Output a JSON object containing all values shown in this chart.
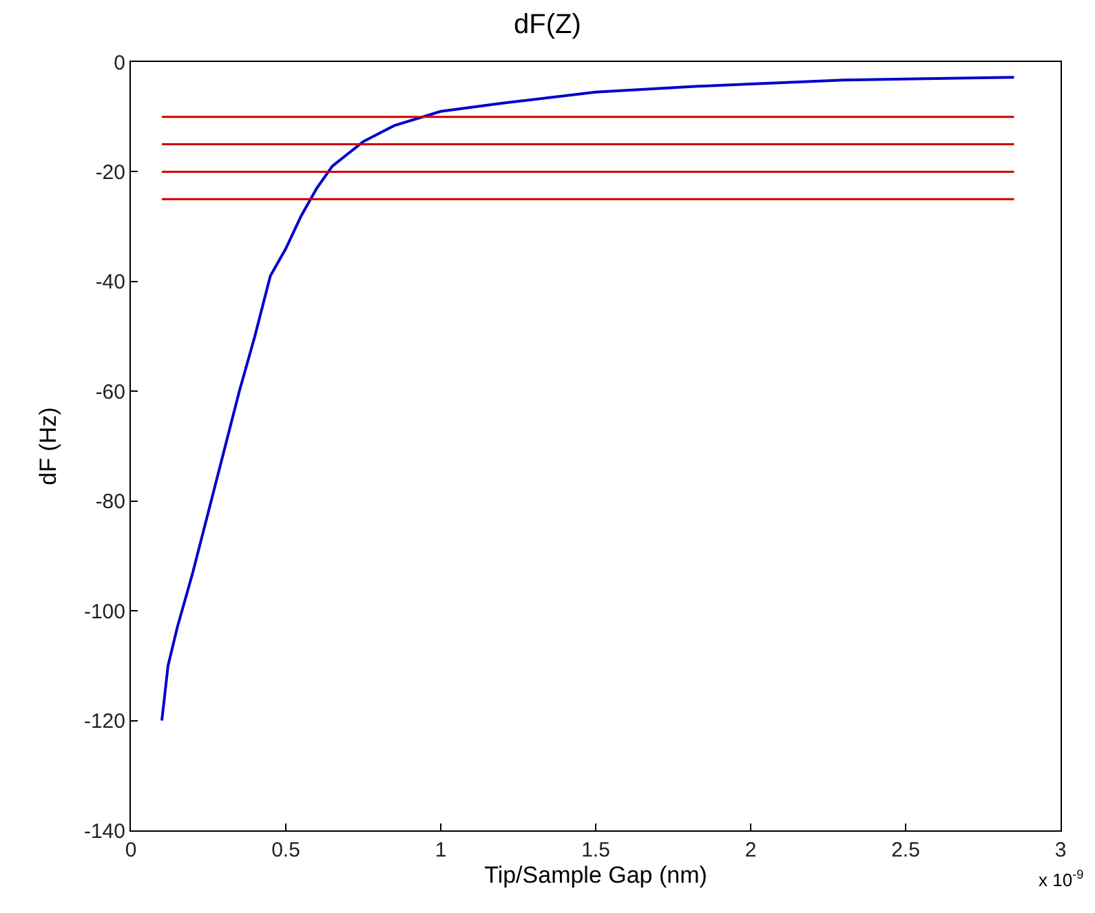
{
  "chart_data": {
    "type": "line",
    "title": "dF(Z)",
    "xlabel": "Tip/Sample Gap (nm)",
    "ylabel": "dF (Hz)",
    "annotations": [
      "x 10$^{-9}$"
    ],
    "x": [
      0.1,
      0.12,
      0.15,
      0.2,
      0.25,
      0.3,
      0.35,
      0.4,
      0.45,
      0.5,
      0.55,
      0.6,
      0.65,
      0.75,
      0.85,
      1.0,
      1.2,
      1.5,
      1.8,
      2.0,
      2.3,
      2.6,
      2.85
    ],
    "series": [
      {
        "color": "#0000cc",
        "values": [
          -120,
          -110,
          -103,
          -93,
          -82,
          -71,
          -60,
          -50,
          -39,
          -34,
          -28,
          -23,
          -19,
          -14.5,
          -11.6,
          -9,
          -7.5,
          -5.5,
          -4.5,
          -4,
          -3.3,
          -3,
          -2.8
        ]
      }
    ],
    "ref_lines": [
      {
        "axis": "y",
        "value": -10,
        "color": "#cc0000"
      },
      {
        "axis": "y",
        "value": -15,
        "color": "#cc0000"
      },
      {
        "axis": "y",
        "value": -20,
        "color": "#cc0000"
      },
      {
        "axis": "y",
        "value": -25,
        "color": "#cc0000"
      }
    ],
    "xlim": [
      0,
      3
    ],
    "xticks": [
      0,
      0.5,
      1,
      1.5,
      2,
      2.5,
      3
    ],
    "ylim": [
      -140,
      0
    ],
    "yticks": [
      -140,
      -120,
      -100,
      -80,
      -60,
      -40,
      -20,
      0
    ]
  }
}
